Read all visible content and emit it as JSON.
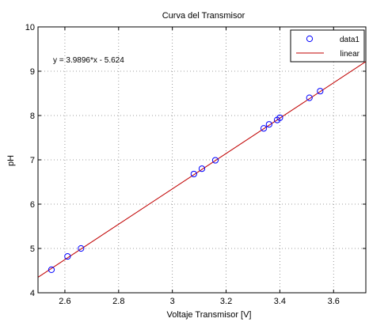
{
  "chart_data": {
    "type": "scatter",
    "title": "Curva del Transmisor",
    "xlabel": "Voltaje Transmisor [V]",
    "ylabel": "pH",
    "xlim": [
      2.5,
      3.72
    ],
    "ylim": [
      4,
      10
    ],
    "xticks": [
      2.6,
      2.8,
      3,
      3.2,
      3.4,
      3.6
    ],
    "xtick_labels": [
      "2.6",
      "2.8",
      "3",
      "3.2",
      "3.4",
      "3.6"
    ],
    "yticks": [
      4,
      5,
      6,
      7,
      8,
      9,
      10
    ],
    "ytick_labels": [
      "4",
      "5",
      "6",
      "7",
      "8",
      "9",
      "10"
    ],
    "grid": true,
    "legend_position": "top-right",
    "annotation": "y = 3.9896*x - 5.624",
    "series": [
      {
        "name": "data1",
        "kind": "markers",
        "marker": "circle",
        "color": "#0000ff",
        "x": [
          2.55,
          2.61,
          2.66,
          3.08,
          3.11,
          3.16,
          3.34,
          3.36,
          3.39,
          3.4,
          3.51,
          3.55
        ],
        "y": [
          4.52,
          4.82,
          5.0,
          6.68,
          6.8,
          6.99,
          7.71,
          7.8,
          7.9,
          7.95,
          8.4,
          8.55
        ]
      },
      {
        "name": "linear",
        "kind": "line",
        "color": "#c00000",
        "slope": 3.9896,
        "intercept": -5.624
      }
    ]
  }
}
